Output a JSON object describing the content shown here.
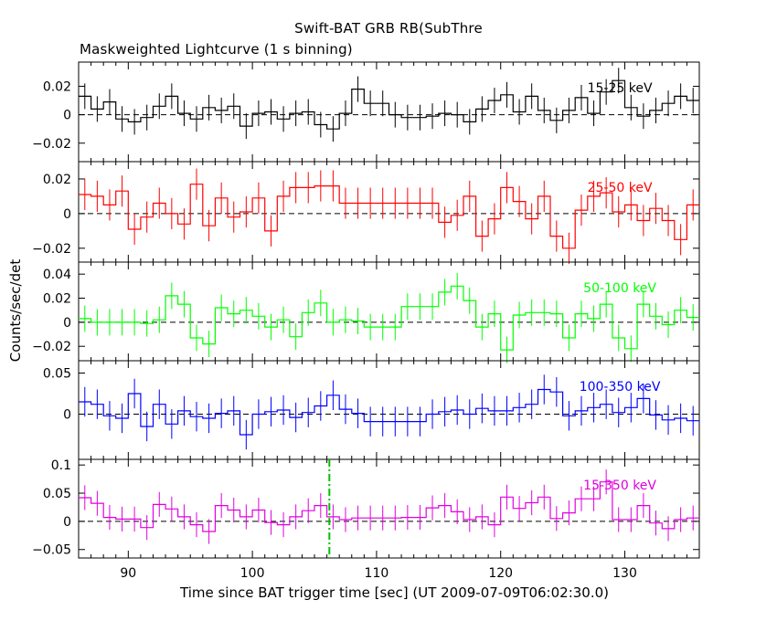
{
  "title": "Swift-BAT GRB RB(SubThre",
  "subtitle": "Maskweighted Lightcurve (1 s binning)",
  "chart_data": {
    "type": "line",
    "style": "step with error bars",
    "xlabel": "Time since BAT trigger time [sec] (UT 2009-07-09T06:02:30.0)",
    "ylabel": "Counts/sec/det",
    "xlim": [
      86,
      136
    ],
    "x_ticks": [
      90,
      100,
      110,
      120,
      130
    ],
    "x_tick_labels": [
      "90",
      "100",
      "110",
      "120",
      "130"
    ],
    "marker_x": 106.2,
    "marker_color": "#00c000",
    "panels": [
      {
        "band": "15-25 keV",
        "color": "#000000",
        "ylim": [
          -0.033,
          0.037
        ],
        "yticks": [
          0.02,
          0,
          -0.02
        ],
        "ytick_labels": [
          "0.02",
          "0",
          "−0.02"
        ],
        "err": 0.009,
        "x": [
          86.5,
          87.5,
          88.5,
          89.5,
          90.5,
          91.5,
          92.5,
          93.5,
          94.5,
          95.5,
          96.5,
          97.5,
          98.5,
          99.5,
          100.5,
          101.5,
          102.5,
          103.5,
          104.5,
          105.5,
          106.5,
          107.5,
          108.5,
          109.5,
          110.5,
          111.5,
          112.5,
          113.5,
          114.5,
          115.5,
          116.5,
          117.5,
          118.5,
          119.5,
          120.5,
          121.5,
          122.5,
          123.5,
          124.5,
          125.5,
          126.5,
          127.5,
          128.5,
          129.5,
          130.5,
          131.5,
          132.5,
          133.5,
          134.5,
          135.5
        ],
        "values": [
          0.013,
          0.004,
          0.009,
          -0.003,
          -0.005,
          -0.002,
          0.006,
          0.013,
          0.001,
          -0.003,
          0.005,
          0.003,
          0.006,
          -0.008,
          0.001,
          0.002,
          -0.003,
          0.001,
          0.002,
          -0.007,
          -0.01,
          0.001,
          0.018,
          0.008,
          0.008,
          0.0,
          -0.002,
          -0.002,
          -0.001,
          0.001,
          0.0,
          -0.005,
          0.004,
          0.01,
          0.014,
          0.002,
          0.013,
          0.003,
          -0.004,
          0.003,
          0.012,
          0.001,
          0.016,
          0.024,
          0.005,
          -0.001,
          0.003,
          0.008,
          0.013,
          0.01
        ]
      },
      {
        "band": "25-50 keV",
        "color": "#ff0000",
        "ylim": [
          -0.028,
          0.03
        ],
        "yticks": [
          0.02,
          0,
          -0.02
        ],
        "ytick_labels": [
          "0.02",
          "0",
          "−0.02"
        ],
        "err": 0.009,
        "x": [
          86.5,
          87.5,
          88.5,
          89.5,
          90.5,
          91.5,
          92.5,
          93.5,
          94.5,
          95.5,
          96.5,
          97.5,
          98.5,
          99.5,
          100.5,
          101.5,
          102.5,
          103.5,
          104.5,
          105.5,
          106.5,
          107.5,
          108.5,
          109.5,
          110.5,
          111.5,
          112.5,
          113.5,
          114.5,
          115.5,
          116.5,
          117.5,
          118.5,
          119.5,
          120.5,
          121.5,
          122.5,
          123.5,
          124.5,
          125.5,
          126.5,
          127.5,
          128.5,
          129.5,
          130.5,
          131.5,
          132.5,
          133.5,
          134.5,
          135.5
        ],
        "values": [
          0.011,
          0.01,
          0.005,
          0.013,
          -0.009,
          -0.002,
          0.006,
          0.0,
          -0.006,
          0.017,
          -0.007,
          0.009,
          -0.002,
          0.001,
          0.009,
          -0.01,
          0.01,
          0.015,
          0.015,
          0.016,
          0.016,
          0.006,
          0.006,
          0.006,
          0.006,
          0.006,
          0.006,
          0.006,
          0.006,
          -0.005,
          -0.001,
          0.01,
          -0.013,
          -0.003,
          0.015,
          0.007,
          -0.003,
          0.01,
          -0.013,
          -0.02,
          0.002,
          0.01,
          0.012,
          0.001,
          0.005,
          -0.004,
          0.003,
          -0.004,
          -0.015,
          0.005
        ]
      },
      {
        "band": "50-100 keV",
        "color": "#00ff00",
        "ylim": [
          -0.032,
          0.05
        ],
        "yticks": [
          0.04,
          0.02,
          0,
          -0.02
        ],
        "ytick_labels": [
          "0.04",
          "0.02",
          "0",
          "−0.02"
        ],
        "err": 0.011,
        "x": [
          86.5,
          87.5,
          88.5,
          89.5,
          90.5,
          91.5,
          92.5,
          93.5,
          94.5,
          95.5,
          96.5,
          97.5,
          98.5,
          99.5,
          100.5,
          101.5,
          102.5,
          103.5,
          104.5,
          105.5,
          106.5,
          107.5,
          108.5,
          109.5,
          110.5,
          111.5,
          112.5,
          113.5,
          114.5,
          115.5,
          116.5,
          117.5,
          118.5,
          119.5,
          120.5,
          121.5,
          122.5,
          123.5,
          124.5,
          125.5,
          126.5,
          127.5,
          128.5,
          129.5,
          130.5,
          131.5,
          132.5,
          133.5,
          134.5,
          135.5
        ],
        "values": [
          0.003,
          0.0,
          0.0,
          0.0,
          0.0,
          -0.001,
          0.002,
          0.022,
          0.015,
          -0.013,
          -0.018,
          0.012,
          0.007,
          0.01,
          0.005,
          -0.004,
          0.002,
          -0.012,
          0.008,
          0.016,
          0.0,
          0.002,
          0.001,
          -0.004,
          -0.004,
          -0.004,
          0.013,
          0.013,
          0.013,
          0.025,
          0.03,
          0.018,
          -0.004,
          0.007,
          -0.023,
          0.006,
          0.008,
          0.008,
          0.007,
          -0.013,
          0.007,
          0.003,
          0.015,
          -0.013,
          -0.022,
          0.015,
          0.005,
          -0.002,
          0.01,
          0.004
        ]
      },
      {
        "band": "100-350 keV",
        "color": "#0000ff",
        "ylim": [
          -0.055,
          0.065
        ],
        "yticks": [
          0.05,
          0
        ],
        "ytick_labels": [
          "0.05",
          "0"
        ],
        "err": 0.018,
        "x": [
          86.5,
          87.5,
          88.5,
          89.5,
          90.5,
          91.5,
          92.5,
          93.5,
          94.5,
          95.5,
          96.5,
          97.5,
          98.5,
          99.5,
          100.5,
          101.5,
          102.5,
          103.5,
          104.5,
          105.5,
          106.5,
          107.5,
          108.5,
          109.5,
          110.5,
          111.5,
          112.5,
          113.5,
          114.5,
          115.5,
          116.5,
          117.5,
          118.5,
          119.5,
          120.5,
          121.5,
          122.5,
          123.5,
          124.5,
          125.5,
          126.5,
          127.5,
          128.5,
          129.5,
          130.5,
          131.5,
          132.5,
          133.5,
          134.5,
          135.5
        ],
        "values": [
          0.015,
          0.012,
          -0.002,
          -0.005,
          0.025,
          -0.015,
          0.012,
          -0.012,
          0.004,
          -0.003,
          -0.005,
          0.001,
          0.004,
          -0.025,
          0.0,
          0.003,
          0.005,
          -0.004,
          0.002,
          0.01,
          0.023,
          0.006,
          0.001,
          -0.009,
          -0.009,
          -0.009,
          -0.009,
          -0.009,
          0.0,
          0.003,
          0.005,
          0.0,
          0.007,
          0.004,
          0.004,
          0.008,
          0.012,
          0.03,
          0.027,
          -0.002,
          0.004,
          0.008,
          0.012,
          0.002,
          0.008,
          0.019,
          -0.001,
          -0.007,
          -0.005,
          -0.008
        ]
      },
      {
        "band": "15-350 keV",
        "color": "#e000e0",
        "ylim": [
          -0.065,
          0.11
        ],
        "yticks": [
          0.1,
          0.05,
          0,
          -0.05
        ],
        "ytick_labels": [
          "0.1",
          "0.05",
          "0",
          "−0.05"
        ],
        "err": 0.022,
        "x": [
          86.5,
          87.5,
          88.5,
          89.5,
          90.5,
          91.5,
          92.5,
          93.5,
          94.5,
          95.5,
          96.5,
          97.5,
          98.5,
          99.5,
          100.5,
          101.5,
          102.5,
          103.5,
          104.5,
          105.5,
          106.5,
          107.5,
          108.5,
          109.5,
          110.5,
          111.5,
          112.5,
          113.5,
          114.5,
          115.5,
          116.5,
          117.5,
          118.5,
          119.5,
          120.5,
          121.5,
          122.5,
          123.5,
          124.5,
          125.5,
          126.5,
          127.5,
          128.5,
          129.5,
          130.5,
          131.5,
          132.5,
          133.5,
          134.5,
          135.5
        ],
        "values": [
          0.042,
          0.032,
          0.007,
          0.004,
          0.004,
          -0.011,
          0.03,
          0.022,
          0.008,
          -0.006,
          -0.018,
          0.028,
          0.02,
          0.008,
          0.02,
          -0.002,
          -0.006,
          0.008,
          0.019,
          0.028,
          0.008,
          0.003,
          0.006,
          0.006,
          0.006,
          0.006,
          0.007,
          0.007,
          0.024,
          0.028,
          0.017,
          0.003,
          0.008,
          -0.006,
          0.043,
          0.023,
          0.033,
          0.043,
          0.005,
          0.015,
          0.04,
          0.04,
          0.07,
          0.003,
          0.003,
          0.028,
          -0.003,
          -0.013,
          0.003,
          0.006
        ]
      }
    ]
  }
}
